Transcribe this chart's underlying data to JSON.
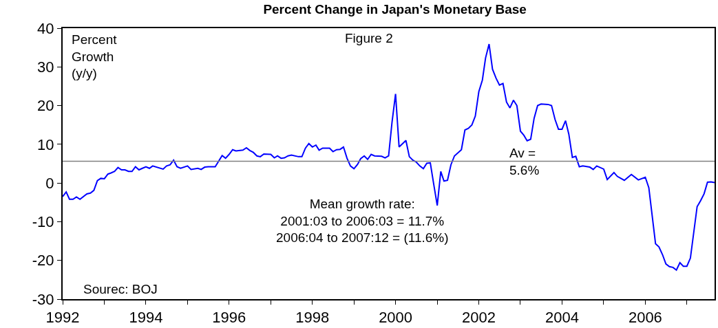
{
  "chart_data": {
    "type": "line",
    "title": "Percent Change in Japan's Monetary Base",
    "ylabel": "Percent\nGrowth\n(y/y)",
    "x": [
      "1992-01",
      "1992-02",
      "1992-03",
      "1992-04",
      "1992-05",
      "1992-06",
      "1992-08",
      "1992-09",
      "1992-10",
      "1992-11",
      "1992-12",
      "1993-01",
      "1993-02",
      "1993-03",
      "1993-04",
      "1993-05",
      "1993-06",
      "1993-07",
      "1993-08",
      "1993-09",
      "1993-10",
      "1993-11",
      "1993-12",
      "1994-01",
      "1994-02",
      "1994-03",
      "1994-06",
      "1994-07",
      "1994-08",
      "1994-09",
      "1994-10",
      "1994-11",
      "1995-01",
      "1995-02",
      "1995-04",
      "1995-05",
      "1995-06",
      "1995-07",
      "1995-09",
      "1995-11",
      "1995-12",
      "1996-01",
      "1996-02",
      "1996-03",
      "1996-05",
      "1996-06",
      "1996-07",
      "1996-08",
      "1996-09",
      "1996-10",
      "1996-11",
      "1997-01",
      "1997-02",
      "1997-03",
      "1997-04",
      "1997-05",
      "1997-06",
      "1997-07",
      "1997-09",
      "1997-10",
      "1997-11",
      "1997-12",
      "1998-01",
      "1998-02",
      "1998-03",
      "1998-04",
      "1998-06",
      "1998-07",
      "1998-08",
      "1998-09",
      "1998-10",
      "1998-11",
      "1998-12",
      "1999-01",
      "1999-02",
      "1999-03",
      "1999-04",
      "1999-05",
      "1999-06",
      "1999-07",
      "1999-09",
      "1999-10",
      "1999-11",
      "1999-12",
      "2000-01",
      "2000-02",
      "2000-04",
      "2000-05",
      "2000-06",
      "2000-07",
      "2000-08",
      "2000-09",
      "2000-10",
      "2000-11",
      "2000-12",
      "2001-01",
      "2001-02",
      "2001-03",
      "2001-04",
      "2001-05",
      "2001-06",
      "2001-08",
      "2001-09",
      "2001-10",
      "2001-11",
      "2001-12",
      "2002-01",
      "2002-02",
      "2002-03",
      "2002-04",
      "2002-05",
      "2002-06",
      "2002-07",
      "2002-08",
      "2002-09",
      "2002-10",
      "2002-11",
      "2002-12",
      "2003-01",
      "2003-02",
      "2003-03",
      "2003-04",
      "2003-05",
      "2003-06",
      "2003-07",
      "2003-09",
      "2003-10",
      "2003-11",
      "2003-12",
      "2004-01",
      "2004-02",
      "2004-03",
      "2004-04",
      "2004-05",
      "2004-06",
      "2004-07",
      "2004-09",
      "2004-10",
      "2004-11",
      "2005-01",
      "2005-02",
      "2005-04",
      "2005-05",
      "2005-07",
      "2005-09",
      "2005-11",
      "2006-01",
      "2006-02",
      "2006-03",
      "2006-04",
      "2006-05",
      "2006-06",
      "2006-07",
      "2006-08",
      "2006-09",
      "2006-10",
      "2006-11",
      "2006-12",
      "2007-01",
      "2007-02",
      "2007-04",
      "2007-05",
      "2007-06",
      "2007-07",
      "2007-08",
      "2007-09"
    ],
    "series": [
      {
        "color": "#0000ff",
        "values": [
          -3.5,
          -2.3,
          -4.2,
          -4.2,
          -3.6,
          -4.2,
          -2.8,
          -2.6,
          -1.9,
          0.6,
          1.2,
          1.1,
          2.3,
          2.6,
          3.0,
          4.0,
          3.4,
          3.4,
          3.0,
          3.0,
          4.2,
          3.4,
          3.8,
          4.2,
          3.8,
          4.4,
          3.6,
          4.4,
          4.7,
          5.9,
          4.2,
          3.8,
          4.4,
          3.5,
          3.8,
          3.5,
          4.1,
          4.2,
          4.2,
          7.1,
          6.4,
          7.4,
          8.6,
          8.3,
          8.5,
          9.1,
          8.4,
          7.9,
          7.0,
          6.8,
          7.5,
          7.4,
          6.5,
          7.0,
          6.4,
          6.5,
          7.0,
          7.2,
          6.8,
          6.8,
          9.0,
          10.2,
          9.3,
          9.8,
          8.5,
          9.0,
          9.0,
          8.1,
          8.6,
          8.7,
          9.3,
          6.4,
          4.4,
          3.7,
          4.8,
          6.3,
          7.0,
          6.1,
          7.4,
          7.0,
          6.9,
          6.5,
          7.0,
          15.7,
          23.0,
          9.3,
          11.0,
          6.8,
          5.9,
          5.4,
          4.4,
          3.7,
          5.1,
          5.2,
          -0.3,
          -5.8,
          3.0,
          0.5,
          0.7,
          4.7,
          7.0,
          8.6,
          13.7,
          14.1,
          15.0,
          17.3,
          23.6,
          26.6,
          32.3,
          35.9,
          29.4,
          27.1,
          25.3,
          25.7,
          20.9,
          19.4,
          21.4,
          20.0,
          13.4,
          12.3,
          10.9,
          11.3,
          16.7,
          20.0,
          20.4,
          20.3,
          20.0,
          16.4,
          13.9,
          13.9,
          16.1,
          12.6,
          6.6,
          6.9,
          4.2,
          4.4,
          4.1,
          3.5,
          4.4,
          3.6,
          0.9,
          2.7,
          1.7,
          0.7,
          2.2,
          0.8,
          1.5,
          -1.2,
          -8.1,
          -15.7,
          -16.5,
          -18.5,
          -20.9,
          -21.6,
          -21.8,
          -22.5,
          -20.6,
          -21.5,
          -21.5,
          -19.4,
          -6.1,
          -4.6,
          -2.8,
          0.2,
          0.3,
          0.1
        ]
      }
    ],
    "xlim": [
      "1992-01",
      "2007-09"
    ],
    "xticks": [
      {
        "value": "1992",
        "label": "1992"
      },
      {
        "value": "1993",
        "label": null
      },
      {
        "value": "1994",
        "label": "1994"
      },
      {
        "value": "1995",
        "label": null
      },
      {
        "value": "1996",
        "label": "1996"
      },
      {
        "value": "1997",
        "label": null
      },
      {
        "value": "1998",
        "label": "1998"
      },
      {
        "value": "1999",
        "label": null
      },
      {
        "value": "2000",
        "label": "2000"
      },
      {
        "value": "2001",
        "label": null
      },
      {
        "value": "2002",
        "label": "2002"
      },
      {
        "value": "2003",
        "label": null
      },
      {
        "value": "2004",
        "label": "2004"
      },
      {
        "value": "2005",
        "label": null
      },
      {
        "value": "2006",
        "label": "2006"
      },
      {
        "value": "2007",
        "label": null
      }
    ],
    "ylim": [
      -30,
      40
    ],
    "yticks": [
      -30,
      -20,
      -10,
      0,
      10,
      20,
      30,
      40
    ],
    "ref_lines": [
      {
        "axis": "y",
        "value": 5.6,
        "label": "Av =\n5.6%",
        "color": "#808080"
      }
    ],
    "annotations": [
      "Figure 2",
      "Mean growth rate:\n2001:03 to 2006:03 = 11.7%\n2006:04 to 2007:12 = (11.6%)",
      "Sourec: BOJ"
    ],
    "legend": false,
    "marker": "none",
    "line_style": "solid"
  }
}
